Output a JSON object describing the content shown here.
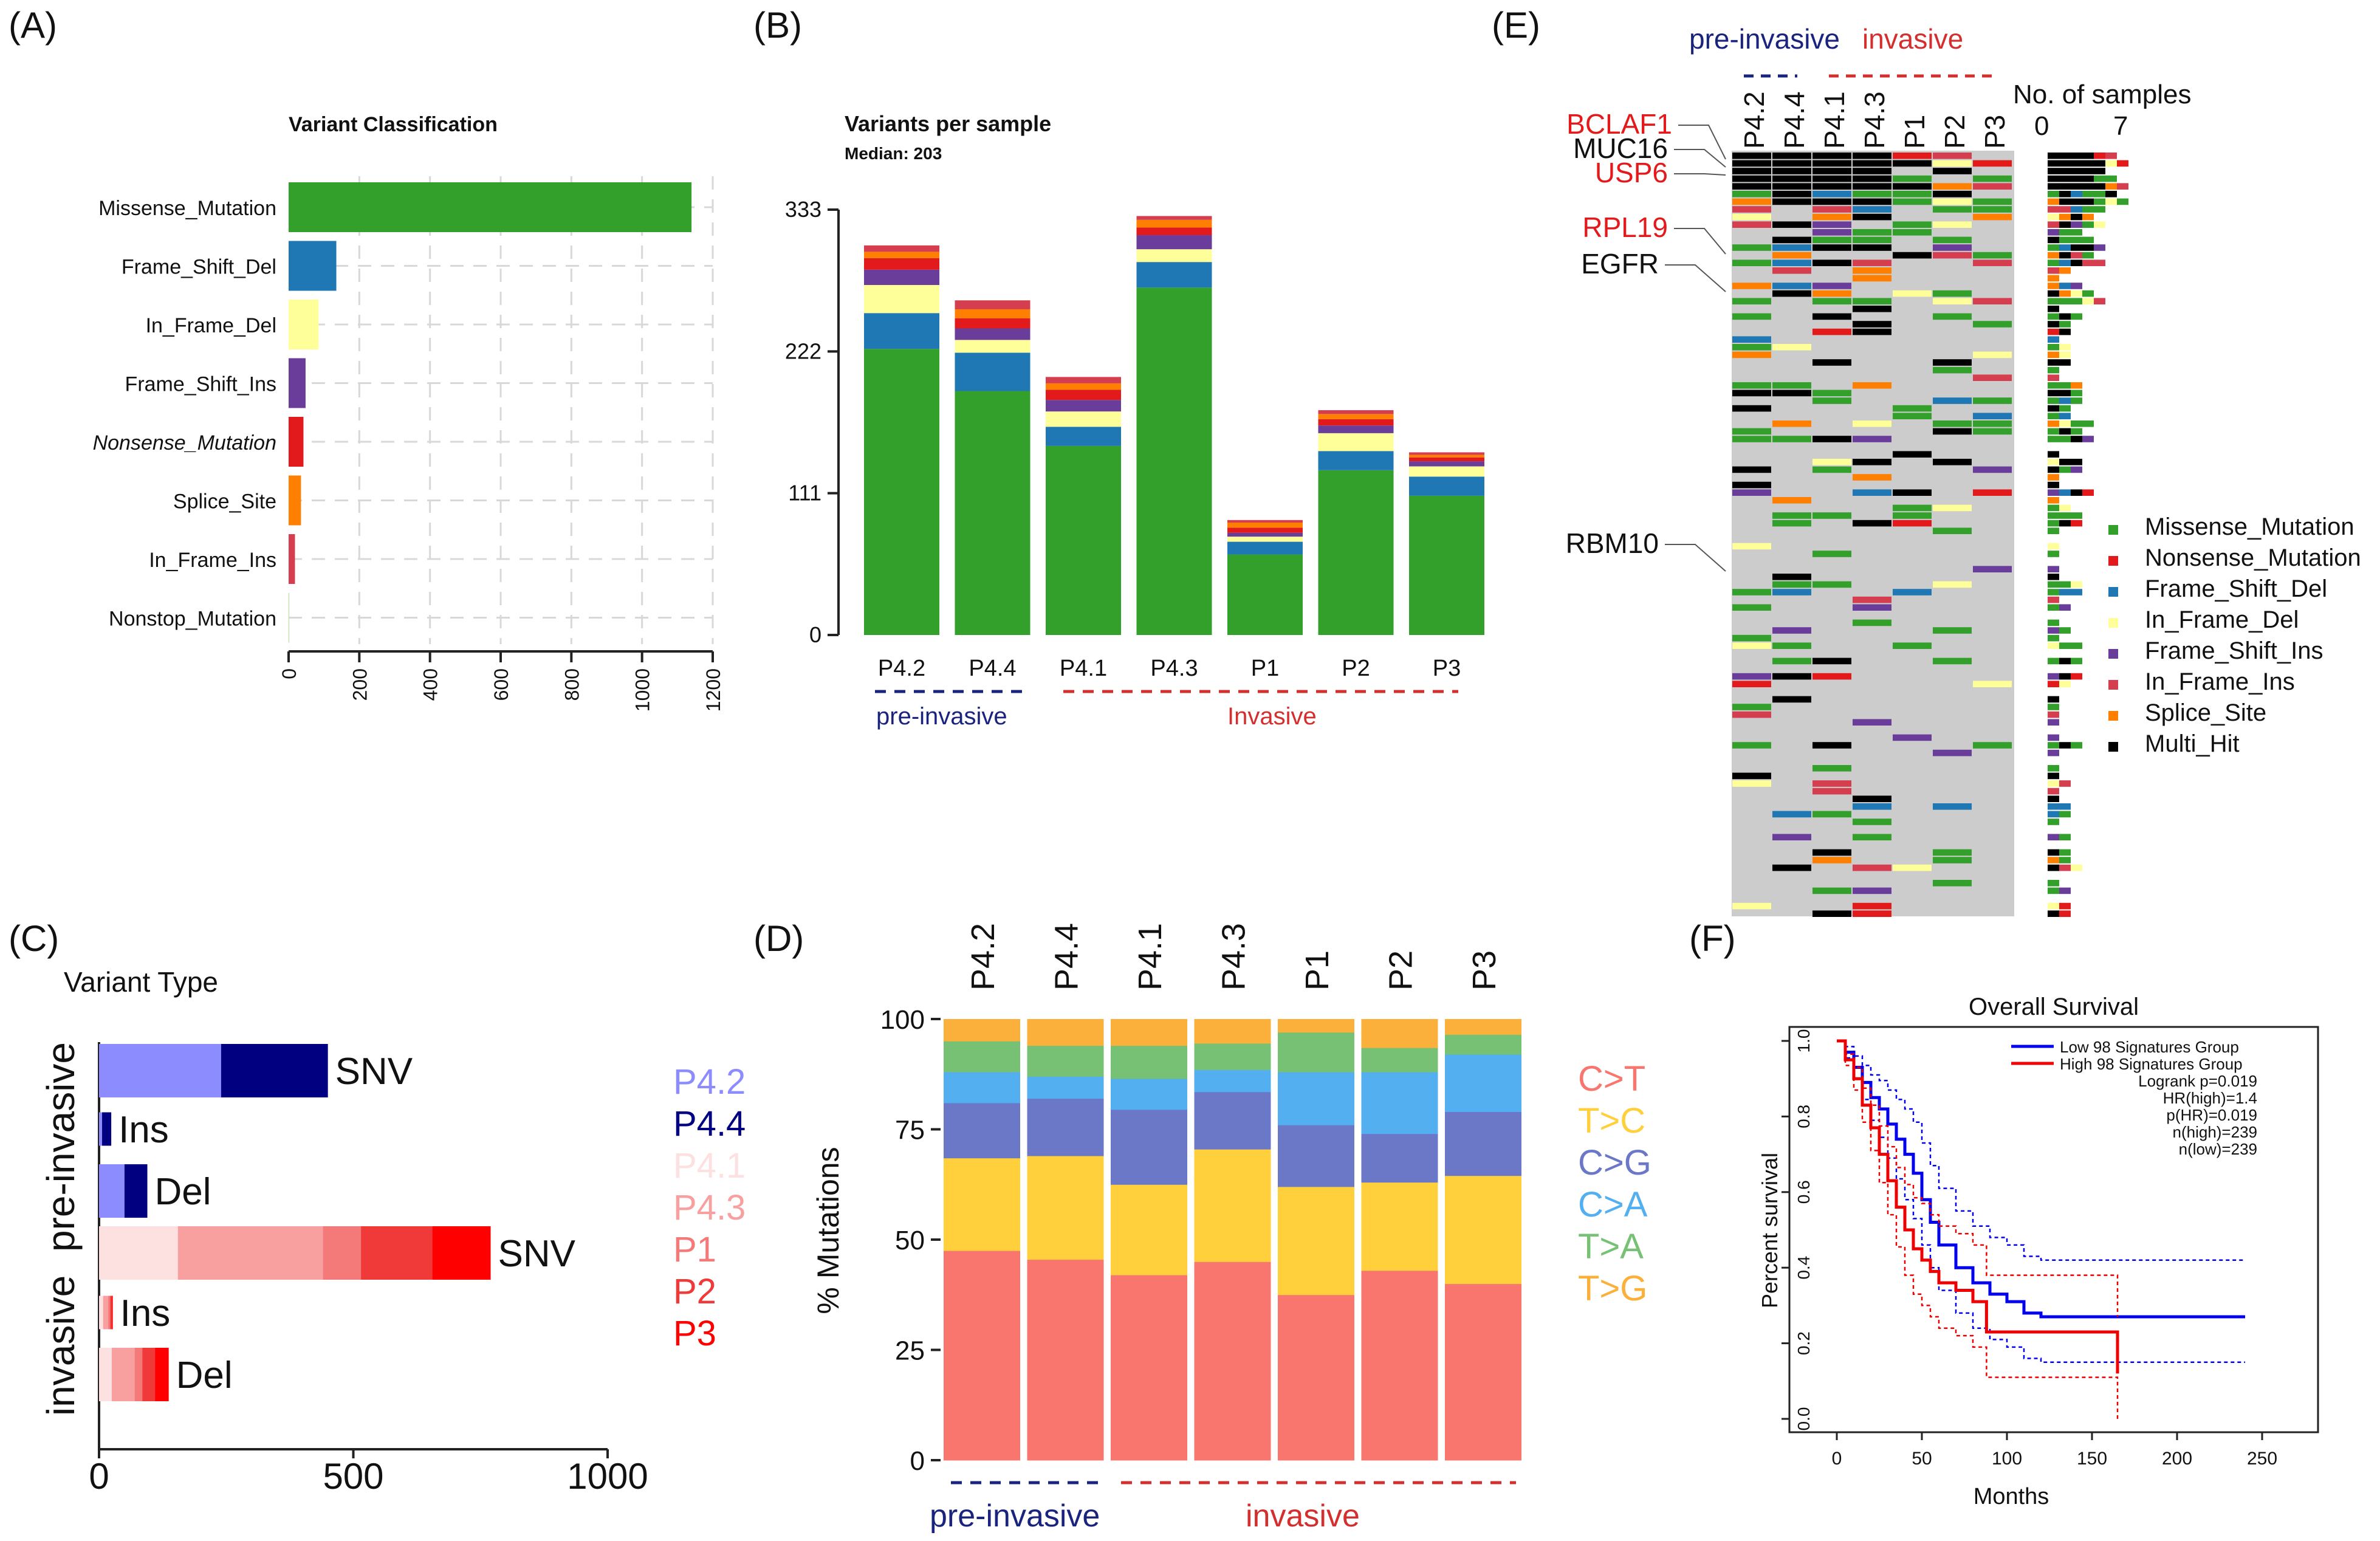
{
  "panels": {
    "A": {
      "label": "(A)"
    },
    "B": {
      "label": "(B)"
    },
    "C": {
      "label": "(C)"
    },
    "D": {
      "label": "(D)"
    },
    "E": {
      "label": "(E)"
    },
    "F": {
      "label": "(F)"
    }
  },
  "colors": {
    "missense": "#33a02c",
    "nonsense": "#e31a1c",
    "frameshift_del": "#1f78b4",
    "inframe_del": "#ffff99",
    "frameshift_ins": "#6a3d9a",
    "inframe_ins": "#d53e4f",
    "splice": "#ff7f00",
    "multi": "#000000",
    "nonstop": "#b2df8a",
    "pre_invasive": "#1a237e",
    "invasive": "#d32f2f"
  },
  "chart_data": [
    {
      "id": "A",
      "type": "bar",
      "orientation": "horizontal",
      "title": "Variant Classification",
      "categories": [
        "Missense_Mutation",
        "Frame_Shift_Del",
        "In_Frame_Del",
        "Frame_Shift_Ins",
        "Nonsense_Mutation",
        "Splice_Site",
        "In_Frame_Ins",
        "Nonstop_Mutation"
      ],
      "values": [
        1140,
        135,
        85,
        48,
        42,
        35,
        18,
        1
      ],
      "xlim": [
        0,
        1200
      ],
      "xticks": [
        "0",
        "200",
        "400",
        "600",
        "800",
        "1000",
        "1200"
      ]
    },
    {
      "id": "B",
      "type": "bar",
      "stacked": true,
      "title": "Variants per sample",
      "subtitle": "Median: 203",
      "categories": [
        "P4.2",
        "P4.4",
        "P4.1",
        "P4.3",
        "P1",
        "P2",
        "P3"
      ],
      "ylim": [
        0,
        333
      ],
      "yticks": [
        "0",
        "111",
        "222",
        "333"
      ],
      "series": [
        {
          "name": "Missense_Mutation",
          "values": [
            224,
            191,
            148,
            272,
            63,
            129,
            109
          ]
        },
        {
          "name": "Frame_Shift_Del",
          "values": [
            28,
            30,
            15,
            20,
            10,
            15,
            15
          ]
        },
        {
          "name": "In_Frame_Del",
          "values": [
            22,
            10,
            12,
            10,
            4,
            14,
            8
          ]
        },
        {
          "name": "Frame_Shift_Ins",
          "values": [
            12,
            9,
            9,
            11,
            3,
            6,
            4
          ]
        },
        {
          "name": "Nonsense_Mutation",
          "values": [
            9,
            8,
            8,
            6,
            4,
            5,
            3
          ]
        },
        {
          "name": "Splice_Site",
          "values": [
            5,
            7,
            5,
            6,
            4,
            4,
            2
          ]
        },
        {
          "name": "In_Frame_Ins",
          "values": [
            5,
            7,
            5,
            3,
            2,
            3,
            2
          ]
        }
      ],
      "groups": [
        {
          "label": "pre-invasive",
          "samples": [
            "P4.2",
            "P4.4"
          ]
        },
        {
          "label": "Invasive",
          "samples": [
            "P4.1",
            "P4.3",
            "P1",
            "P2",
            "P3"
          ]
        }
      ]
    },
    {
      "id": "C",
      "type": "bar",
      "orientation": "horizontal",
      "stacked": true,
      "title": "Variant Type",
      "groups": [
        "pre-invasive",
        "invasive"
      ],
      "rows": [
        {
          "group": "pre-invasive",
          "label": "SNV",
          "segments": [
            {
              "sample": "P4.2",
              "value": 240
            },
            {
              "sample": "P4.4",
              "value": 210
            }
          ]
        },
        {
          "group": "pre-invasive",
          "label": "Ins",
          "segments": [
            {
              "sample": "P4.2",
              "value": 6
            },
            {
              "sample": "P4.4",
              "value": 18
            }
          ]
        },
        {
          "group": "pre-invasive",
          "label": "Del",
          "segments": [
            {
              "sample": "P4.2",
              "value": 50
            },
            {
              "sample": "P4.4",
              "value": 45
            }
          ]
        },
        {
          "group": "invasive",
          "label": "SNV",
          "segments": [
            {
              "sample": "P4.1",
              "value": 155
            },
            {
              "sample": "P4.3",
              "value": 285
            },
            {
              "sample": "P1",
              "value": 75
            },
            {
              "sample": "P2",
              "value": 140
            },
            {
              "sample": "P3",
              "value": 115
            }
          ]
        },
        {
          "group": "invasive",
          "label": "Ins",
          "segments": [
            {
              "sample": "P4.1",
              "value": 8
            },
            {
              "sample": "P4.3",
              "value": 10
            },
            {
              "sample": "P1",
              "value": 4
            },
            {
              "sample": "P2",
              "value": 3
            },
            {
              "sample": "P3",
              "value": 2
            }
          ]
        },
        {
          "group": "invasive",
          "label": "Del",
          "segments": [
            {
              "sample": "P4.1",
              "value": 25
            },
            {
              "sample": "P4.3",
              "value": 45
            },
            {
              "sample": "P1",
              "value": 15
            },
            {
              "sample": "P2",
              "value": 25
            },
            {
              "sample": "P3",
              "value": 27
            }
          ]
        }
      ],
      "xlim": [
        0,
        1000
      ],
      "xticks": [
        "0",
        "500",
        "1000"
      ],
      "legend": [
        {
          "sample": "P4.2",
          "color": "#8c8cff"
        },
        {
          "sample": "P4.4",
          "color": "#000080"
        },
        {
          "sample": "P4.1",
          "color": "#fde0e0"
        },
        {
          "sample": "P4.3",
          "color": "#f8a0a0"
        },
        {
          "sample": "P1",
          "color": "#f47a7a"
        },
        {
          "sample": "P2",
          "color": "#f03a3a"
        },
        {
          "sample": "P3",
          "color": "#ff0000"
        }
      ]
    },
    {
      "id": "D",
      "type": "bar",
      "stacked": true,
      "percent": true,
      "ylabel": "% Mutations",
      "categories": [
        "P4.2",
        "P4.4",
        "P4.1",
        "P4.3",
        "P1",
        "P2",
        "P3"
      ],
      "ylim": [
        0,
        100
      ],
      "yticks": [
        "0",
        "25",
        "50",
        "75",
        "100"
      ],
      "series": [
        {
          "name": "C>T",
          "color": "#f8766d",
          "values": [
            47.5,
            45.5,
            42,
            45,
            37.5,
            43,
            40
          ]
        },
        {
          "name": "T>C",
          "color": "#ffd03b",
          "values": [
            21,
            23.5,
            20.5,
            25.5,
            24.5,
            20,
            24.5
          ]
        },
        {
          "name": "C>G",
          "color": "#6b77c7",
          "values": [
            12.5,
            13,
            17,
            13,
            14,
            11,
            14.5
          ]
        },
        {
          "name": "C>A",
          "color": "#53aff0",
          "values": [
            7,
            5,
            7,
            5,
            12,
            14,
            13
          ]
        },
        {
          "name": "T>A",
          "color": "#76c173",
          "values": [
            7,
            7,
            7.5,
            6,
            9,
            5.5,
            4.5
          ]
        },
        {
          "name": "T>G",
          "color": "#fbb03b",
          "values": [
            5,
            6,
            6,
            5.5,
            3,
            6.5,
            3.5
          ]
        }
      ],
      "legend": [
        "C>T",
        "T>C",
        "C>G",
        "C>A",
        "T>A",
        "T>G"
      ],
      "groups": [
        {
          "label": "pre-invasive"
        },
        {
          "label": "invasive"
        }
      ]
    },
    {
      "id": "E",
      "type": "heatmap",
      "title_pre": "pre-invasive",
      "title_inv": "invasive",
      "samples": [
        "P4.2",
        "P4.4",
        "P4.1",
        "P4.3",
        "P1",
        "P2",
        "P3"
      ],
      "side_title": "No. of samples",
      "side_ticks": [
        "0",
        "7"
      ],
      "gene_labels": [
        {
          "name": "BCLAF1",
          "color": "#e31a1c"
        },
        {
          "name": "MUC16",
          "color": "#111111"
        },
        {
          "name": "USP6",
          "color": "#e31a1c"
        },
        {
          "name": "RPL19",
          "color": "#e31a1c"
        },
        {
          "name": "EGFR",
          "color": "#111111"
        },
        {
          "name": "RBM10",
          "color": "#111111"
        }
      ],
      "legend": [
        "Missense_Mutation",
        "Nonsense_Mutation",
        "Frame_Shift_Del",
        "In_Frame_Del",
        "Frame_Shift_Ins",
        "In_Frame_Ins",
        "Splice_Site",
        "Multi_Hit"
      ]
    },
    {
      "id": "F",
      "type": "line",
      "title": "Overall Survival",
      "xlabel": "Months",
      "ylabel": "Percent survival",
      "xlim": [
        0,
        250
      ],
      "ylim": [
        0,
        1
      ],
      "xticks": [
        "0",
        "50",
        "100",
        "150",
        "200",
        "250"
      ],
      "yticks": [
        "0.0",
        "0.2",
        "0.4",
        "0.6",
        "0.8",
        "1.0"
      ],
      "series": [
        {
          "name": "Low 98 Signatures Group",
          "color": "#0000ee",
          "x": [
            0,
            5,
            10,
            15,
            20,
            25,
            30,
            35,
            40,
            45,
            50,
            55,
            60,
            70,
            80,
            90,
            100,
            110,
            120,
            240
          ],
          "y": [
            1.0,
            0.97,
            0.93,
            0.89,
            0.85,
            0.82,
            0.78,
            0.74,
            0.7,
            0.65,
            0.58,
            0.52,
            0.46,
            0.4,
            0.36,
            0.33,
            0.31,
            0.28,
            0.27,
            0.27
          ]
        },
        {
          "name": "High 98 Signatures Group",
          "color": "#ee0000",
          "x": [
            0,
            5,
            10,
            15,
            20,
            25,
            30,
            35,
            40,
            45,
            50,
            55,
            60,
            70,
            80,
            88,
            120,
            165
          ],
          "y": [
            1.0,
            0.95,
            0.9,
            0.83,
            0.77,
            0.7,
            0.63,
            0.56,
            0.5,
            0.45,
            0.42,
            0.39,
            0.36,
            0.34,
            0.31,
            0.23,
            0.23,
            0.12
          ]
        }
      ],
      "legend_text": [
        "Low 98 Signatures Group",
        "High 98 Signatures Group",
        "Logrank p=0.019",
        "HR(high)=1.4",
        "p(HR)=0.019",
        "n(high)=239",
        "n(low)=239"
      ]
    }
  ]
}
